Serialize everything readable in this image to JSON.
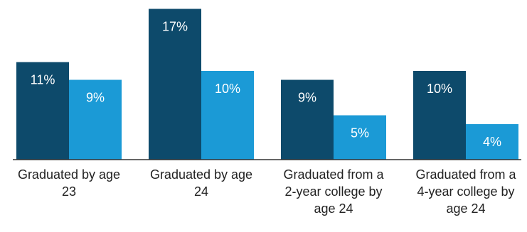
{
  "chart_data": {
    "type": "grouped-bar",
    "categories": [
      "Graduated by age 23",
      "Graduated by age 24",
      "Graduated from a 2-year college by age 24",
      "Graduated from a 4-year college by age 24"
    ],
    "series": [
      {
        "color": "#0d4a6b",
        "values": [
          11,
          17,
          9,
          10
        ],
        "value_labels": [
          "11%",
          "17%",
          "9%",
          "10%"
        ]
      },
      {
        "color": "#1b9ad6",
        "values": [
          9,
          10,
          5,
          4
        ],
        "value_labels": [
          "9%",
          "10%",
          "5%",
          "4%"
        ]
      }
    ],
    "ylim": [
      0,
      18
    ]
  }
}
